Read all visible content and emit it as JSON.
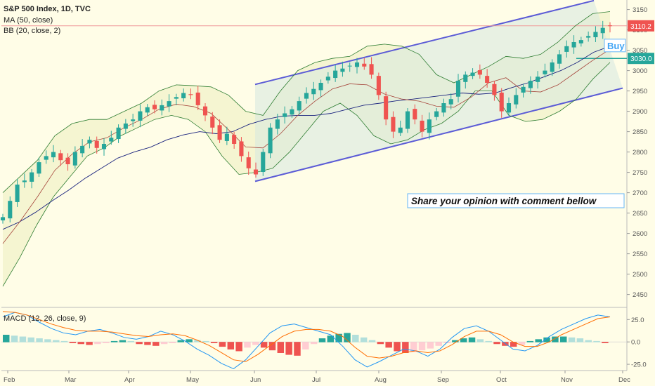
{
  "header": {
    "symbol_line": "S&P 500 Index, 1D, TVC",
    "ma_line": "MA (50, close)",
    "bb_line": "BB (20, close, 2)",
    "macd_line": "MACD (12, 26, close, 9)"
  },
  "annotations": {
    "comment_box": "Share your opinion with comment bellow",
    "buy_label": "Buy"
  },
  "price_tags": {
    "last": "3110.2",
    "level": "3030.0"
  },
  "colors": {
    "background": "#fffde7",
    "candle_up": "#26a69a",
    "candle_down": "#ef5350",
    "channel": "#5b5bd6",
    "bb": "#2e7d32",
    "ma": "#1a237e",
    "macd": "#2196f3",
    "signal": "#ff6d00",
    "last_tag": "#ef5350",
    "level_tag": "#26a69a"
  },
  "chart_data": [
    {
      "type": "candlestick",
      "title": "S&P 500 Index, 1D, TVC",
      "x_ticks": [
        "Feb",
        "Mar",
        "Apr",
        "May",
        "Jun",
        "Jul",
        "Aug",
        "Sep",
        "Oct",
        "Nov",
        "Dec"
      ],
      "y_ticks": [
        3150,
        3100,
        3050,
        3000,
        2950,
        2900,
        2850,
        2800,
        2750,
        2700,
        2650,
        2600,
        2550,
        2500,
        2450
      ],
      "ylim": [
        2420,
        3170
      ],
      "series": [
        {
          "name": "S&P 500 Index",
          "values": [
            2640,
            2680,
            2720,
            2730,
            2750,
            2775,
            2790,
            2800,
            2780,
            2770,
            2800,
            2815,
            2830,
            2810,
            2820,
            2835,
            2860,
            2870,
            2880,
            2900,
            2910,
            2905,
            2915,
            2925,
            2935,
            2945,
            2940,
            2915,
            2890,
            2860,
            2830,
            2845,
            2820,
            2790,
            2760,
            2745,
            2800,
            2860,
            2880,
            2895,
            2905,
            2925,
            2945,
            2955,
            2970,
            2985,
            3000,
            3005,
            3012,
            3020,
            3010,
            2990,
            2940,
            2880,
            2850,
            2860,
            2900,
            2880,
            2850,
            2880,
            2900,
            2920,
            2930,
            2975,
            2990,
            2995,
            2990,
            2970,
            2940,
            2900,
            2920,
            2940,
            2960,
            2975,
            2985,
            3000,
            3020,
            3040,
            3060,
            3070,
            3075,
            3085,
            3095,
            3105,
            3110
          ]
        },
        {
          "name": "MA (50, close)",
          "values": [
            2610,
            2628,
            2652,
            2680,
            2706,
            2735,
            2760,
            2785,
            2800,
            2812,
            2830,
            2842,
            2850,
            2845,
            2850,
            2868,
            2880,
            2888,
            2890,
            2890,
            2895,
            2905,
            2915,
            2920,
            2926,
            2930,
            2935,
            2940,
            2945,
            2942,
            2945,
            2958,
            2970,
            2985,
            3000,
            3020,
            3045,
            3060
          ]
        },
        {
          "name": "BB (20, close, 2)",
          "values": [
            2470,
            2540,
            2620,
            2690,
            2740,
            2790,
            2810,
            2840,
            2860,
            2880,
            2890,
            2880,
            2850,
            2790,
            2745,
            2750,
            2760,
            2800,
            2850,
            2900,
            2920,
            2890,
            2840,
            2820,
            2830,
            2855,
            2870,
            2900,
            2950,
            2950,
            2890,
            2875,
            2880,
            2900,
            2930,
            2980,
            3020
          ]
        }
      ],
      "bb_upper": [
        2700,
        2740,
        2780,
        2840,
        2870,
        2880,
        2880,
        2900,
        2920,
        2950,
        2965,
        2963,
        2960,
        2940,
        2900,
        2890,
        2950,
        3000,
        3020,
        3030,
        3035,
        3060,
        3065,
        3060,
        3040,
        2990,
        2970,
        2990,
        3010,
        3035,
        3030,
        3040,
        3070,
        3110,
        3140,
        3145
      ]
    },
    {
      "type": "bar",
      "title": "MACD (12, 26, close, 9)",
      "y_ticks": [
        25.0,
        0.0,
        -25.0
      ],
      "ylim": [
        -32,
        37
      ],
      "series": [
        {
          "name": "MACD histogram",
          "values": [
            8,
            7,
            6,
            5,
            4,
            3,
            2,
            1,
            -1,
            -2,
            -3,
            -2,
            -1,
            1,
            2,
            1,
            -2,
            -3,
            -4,
            -2,
            -1,
            2,
            3,
            2,
            1,
            -1,
            -5,
            -8,
            -10,
            -6,
            -3,
            -6,
            -9,
            -12,
            -14,
            -15,
            -8,
            -2,
            4,
            7,
            9,
            10,
            8,
            5,
            2,
            -2,
            -6,
            -10,
            -12,
            -11,
            -9,
            -7,
            -4,
            -1,
            2,
            4,
            5,
            3,
            1,
            -2,
            -4,
            -5,
            -3,
            1,
            3,
            5,
            6,
            6,
            5,
            4,
            2,
            1,
            -1
          ]
        },
        {
          "name": "MACD",
          "values": [
            28,
            33,
            30,
            22,
            15,
            10,
            8,
            12,
            14,
            10,
            5,
            3,
            6,
            12,
            8,
            1,
            -8,
            -15,
            -24,
            -30,
            -20,
            -5,
            10,
            18,
            20,
            16,
            12,
            8,
            -5,
            -20,
            -28,
            -22,
            -15,
            -8,
            -10,
            -16,
            -8,
            5,
            15,
            18,
            12,
            2,
            -8,
            -10,
            -4,
            6,
            14,
            20,
            26,
            30,
            28
          ]
        },
        {
          "name": "Signal",
          "values": [
            34,
            33,
            30,
            25,
            20,
            16,
            13,
            12,
            12,
            11,
            9,
            7,
            6,
            8,
            9,
            7,
            2,
            -4,
            -12,
            -20,
            -22,
            -14,
            -4,
            6,
            12,
            14,
            14,
            12,
            6,
            -6,
            -16,
            -18,
            -16,
            -12,
            -10,
            -12,
            -10,
            -3,
            6,
            12,
            12,
            8,
            0,
            -5,
            -5,
            0,
            8,
            14,
            20,
            26,
            28
          ]
        }
      ]
    }
  ]
}
